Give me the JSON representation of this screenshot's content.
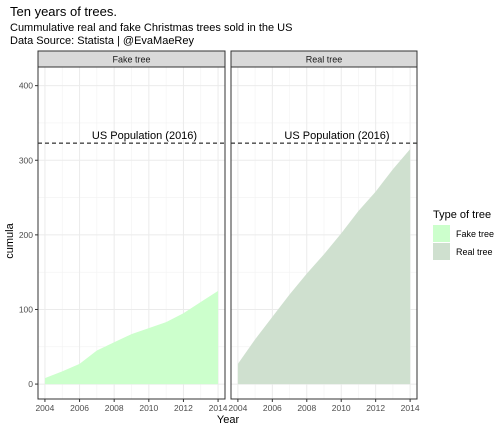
{
  "title": "Ten years of trees.",
  "subtitle_line1": "Cummulative real and fake Christmas trees sold in the US",
  "subtitle_line2": "Data Source: Statista | @EvaMaeRey",
  "chart_data": {
    "type": "area",
    "xlabel": "Year",
    "ylabel": "cumula",
    "xlim": [
      2003.6,
      2014.4
    ],
    "ylim": [
      -20,
      425
    ],
    "x_ticks": [
      "2004",
      "2006",
      "2008",
      "2010",
      "2012",
      "2014"
    ],
    "y_ticks": [
      "0",
      "100",
      "200",
      "300",
      "400"
    ],
    "grid": true,
    "legend_title": "Type of tree",
    "legend_position": "right",
    "facets": [
      {
        "label": "Fake tree",
        "series_name": "Fake tree",
        "color": "#ccffcc",
        "x": [
          2004,
          2005,
          2006,
          2007,
          2008,
          2009,
          2010,
          2011,
          2012,
          2013,
          2014
        ],
        "y": [
          8,
          17,
          27,
          45,
          56,
          67,
          75,
          83,
          95,
          110,
          125
        ]
      },
      {
        "label": "Real tree",
        "series_name": "Real tree",
        "color": "#cfe0cf",
        "x": [
          2004,
          2005,
          2006,
          2007,
          2008,
          2009,
          2010,
          2011,
          2012,
          2013,
          2014
        ],
        "y": [
          27,
          60,
          90,
          120,
          148,
          174,
          202,
          232,
          258,
          288,
          315
        ]
      }
    ],
    "reference_line": {
      "y": 323,
      "label": "US Population (2016)"
    }
  }
}
